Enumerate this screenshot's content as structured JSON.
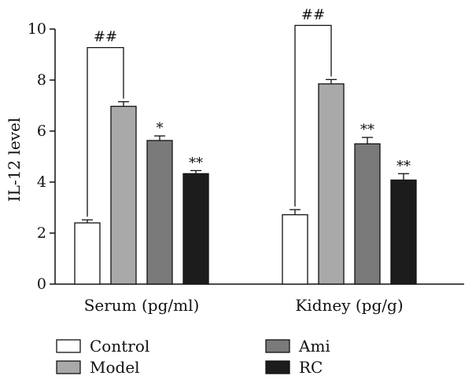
{
  "chart_data": {
    "type": "bar",
    "title": "",
    "xlabel": "",
    "ylabel": "IL-12 level",
    "ylim": [
      0,
      10
    ],
    "yticks": [
      0,
      2,
      4,
      6,
      8,
      10
    ],
    "categories": [
      "Serum (pg/ml)",
      "Kidney (pg/g)"
    ],
    "series": [
      {
        "name": "Control",
        "values": [
          2.4,
          2.72
        ],
        "errors": [
          0.12,
          0.2
        ],
        "color": "#ffffff"
      },
      {
        "name": "Model",
        "values": [
          6.97,
          7.85
        ],
        "errors": [
          0.18,
          0.17
        ],
        "color": "#a9a9a9"
      },
      {
        "name": "Ami",
        "values": [
          5.63,
          5.5
        ],
        "errors": [
          0.18,
          0.25
        ],
        "color": "#7a7a7a"
      },
      {
        "name": "RC",
        "values": [
          4.33,
          4.08
        ],
        "errors": [
          0.12,
          0.25
        ],
        "color": "#1c1c1c"
      }
    ],
    "significance": [
      [
        null,
        null
      ],
      [
        null,
        null
      ],
      [
        "*",
        "**"
      ],
      [
        "**",
        "**"
      ]
    ],
    "brackets": [
      {
        "category": 0,
        "from_series": 0,
        "to_series": 1,
        "label": "##"
      },
      {
        "category": 1,
        "from_series": 0,
        "to_series": 1,
        "label": "##"
      }
    ],
    "legend_position": "bottom",
    "grid": false
  }
}
